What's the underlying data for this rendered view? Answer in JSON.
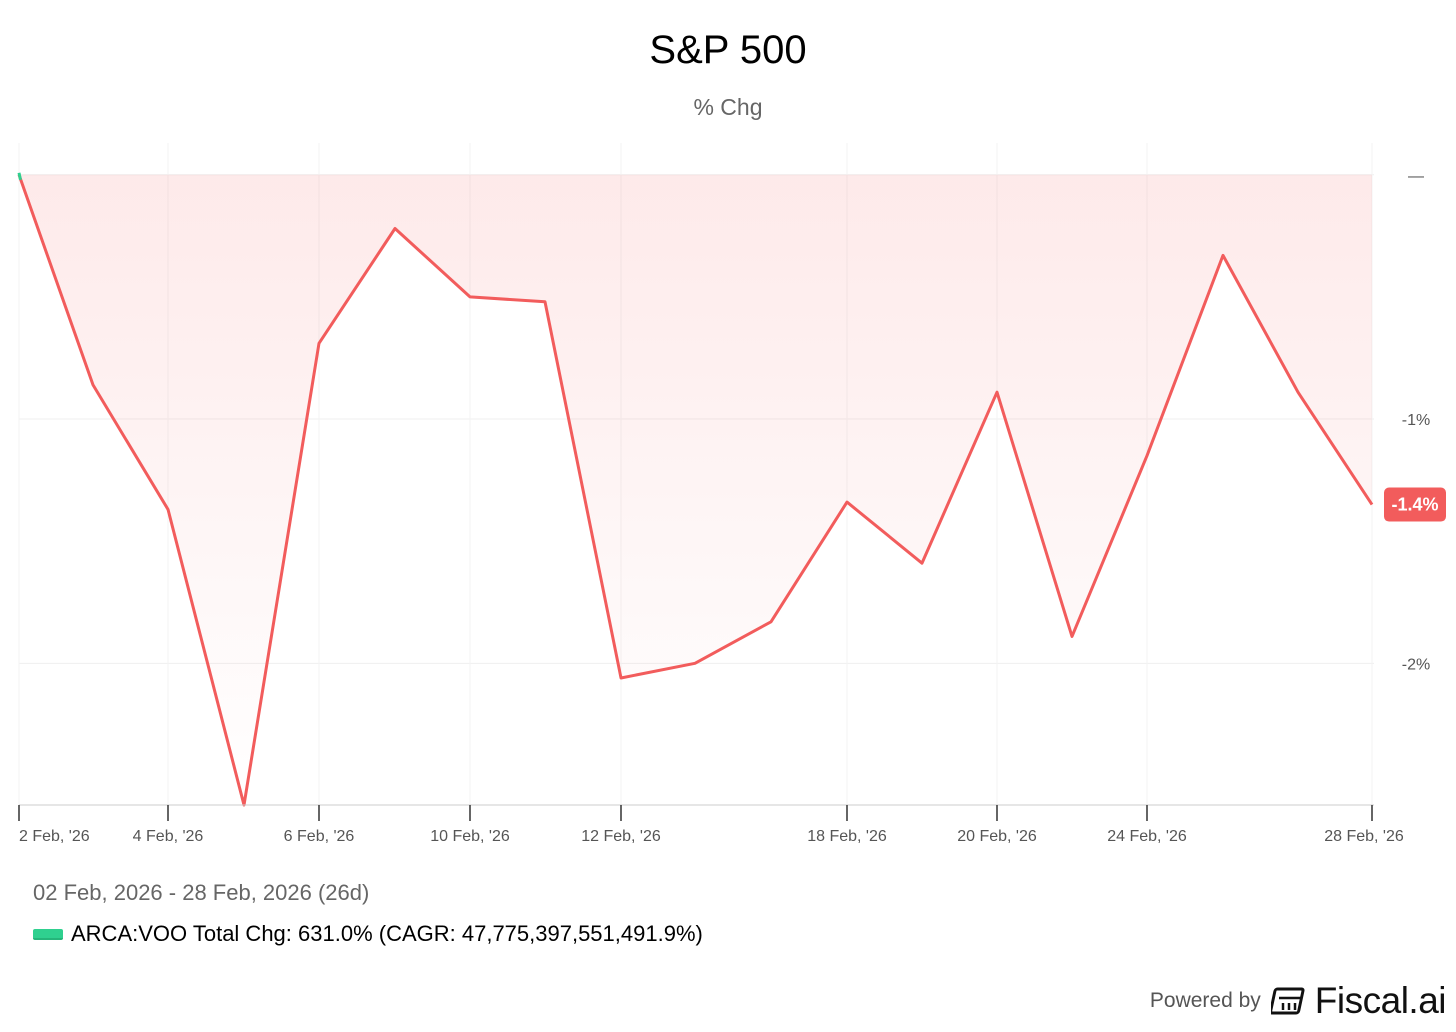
{
  "chart_data": {
    "type": "area",
    "title": "S&P 500",
    "subtitle": "% Chg",
    "x": [
      "2 Feb, '26",
      "3 Feb, '26",
      "4 Feb, '26",
      "5 Feb, '26",
      "6 Feb, '26",
      "9 Feb, '26",
      "10 Feb, '26",
      "11 Feb, '26",
      "12 Feb, '26",
      "13 Feb, '26",
      "17 Feb, '26",
      "18 Feb, '26",
      "19 Feb, '26",
      "20 Feb, '26",
      "23 Feb, '26",
      "24 Feb, '26",
      "25 Feb, '26",
      "26 Feb, '26",
      "28 Feb, '26"
    ],
    "x_tick_labels": [
      "2 Feb, '26",
      "4 Feb, '26",
      "6 Feb, '26",
      "10 Feb, '26",
      "12 Feb, '26",
      "18 Feb, '26",
      "20 Feb, '26",
      "24 Feb, '26",
      "28 Feb, '26"
    ],
    "x_tick_index": [
      0,
      2,
      4,
      6,
      8,
      11,
      13,
      15,
      18
    ],
    "series": [
      {
        "values": [
          0.0,
          -0.86,
          -1.37,
          -2.58,
          -0.69,
          -0.22,
          -0.5,
          -0.52,
          -2.06,
          -2.0,
          -1.83,
          -1.34,
          -1.59,
          -0.89,
          -1.89,
          -1.15,
          -0.33,
          -0.89,
          -1.35
        ],
        "color": "#f25c5c"
      }
    ],
    "y_ticks": [
      0,
      -1,
      -2
    ],
    "y_tick_labels": [
      "—",
      "-1%",
      "-2%"
    ],
    "ylim": [
      -2.58,
      0.13
    ],
    "last_value_label": "-1.4%",
    "last_value_color": "#f25c5c",
    "start_marker_color": "#2fd08f",
    "grid": true,
    "y_axis_side": "right"
  },
  "footer": {
    "date_range": "02 Feb, 2026 - 28 Feb, 2026 (26d)",
    "legend_text": "ARCA:VOO Total Chg: 631.0% (CAGR: 47,775,397,551,491.9%)",
    "legend_color": "#2fd08f",
    "powered_by": "Powered by",
    "brand": "Fiscal.ai"
  }
}
